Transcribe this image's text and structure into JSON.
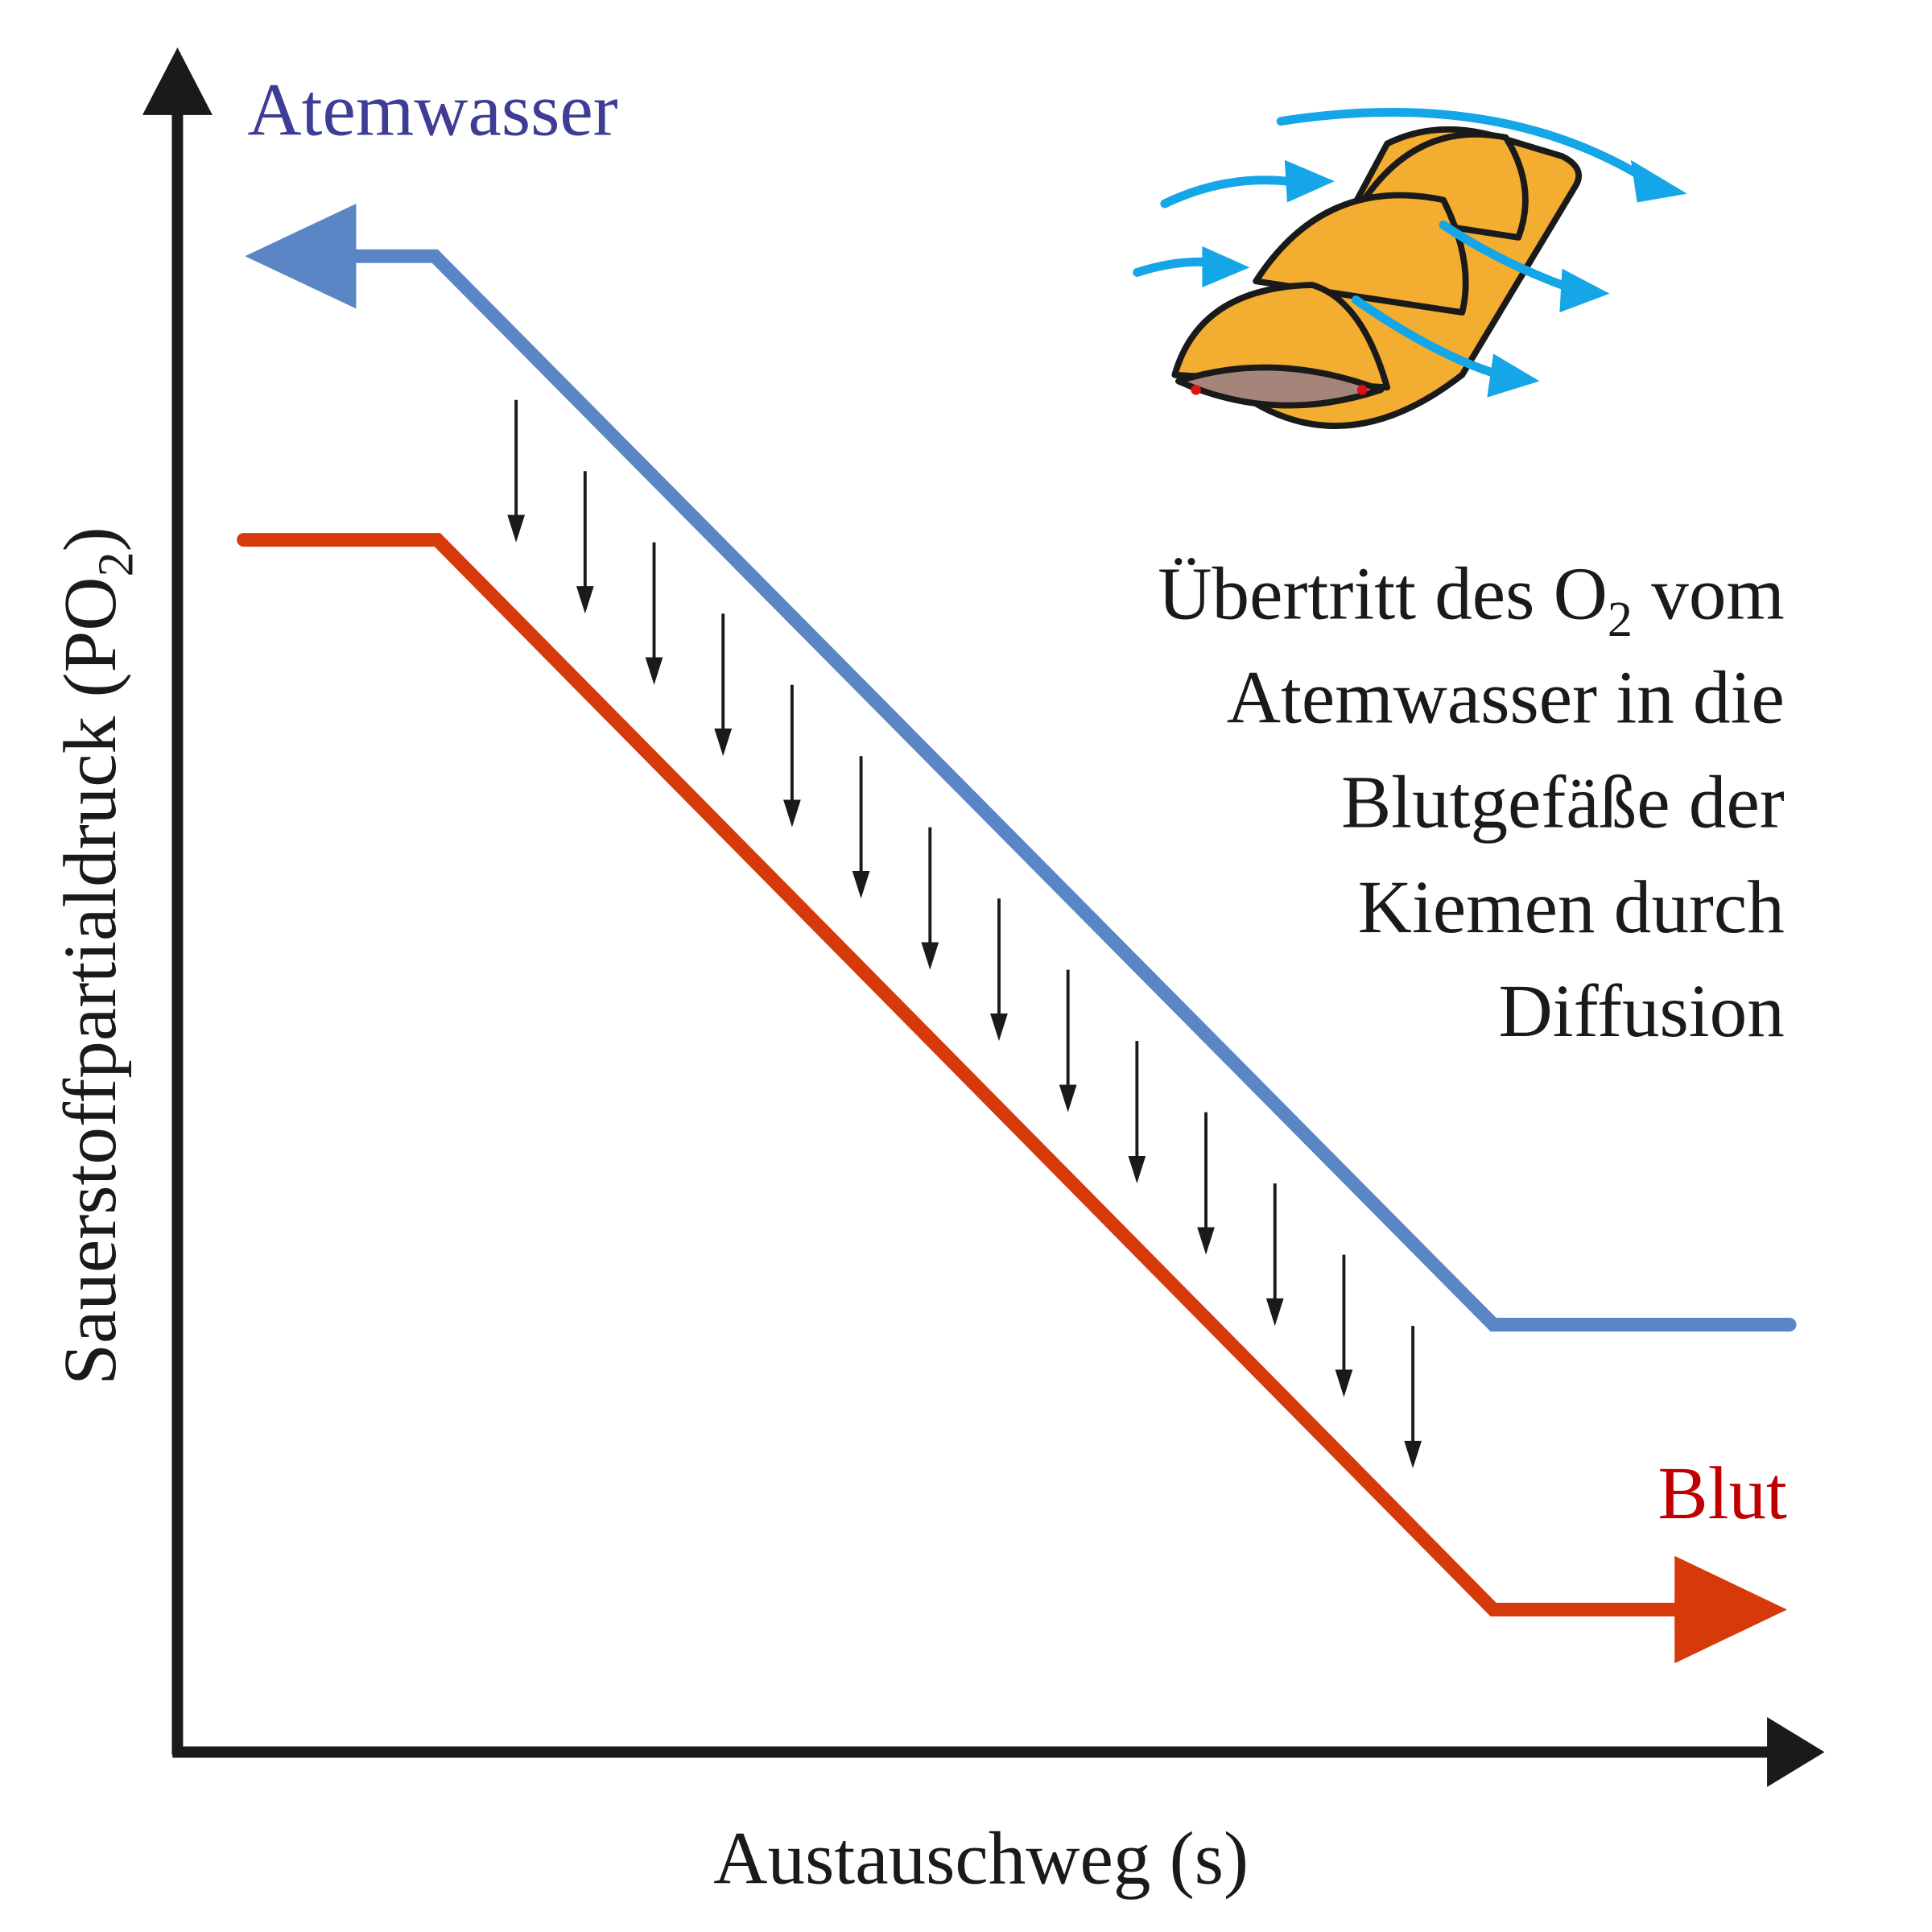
{
  "title": "Atemwasser",
  "blood_label": "Blut",
  "x_axis_label": "Austauschweg (s)",
  "y_axis_label": {
    "before": "Sauerstoffpartialdruck (PO",
    "sub": "2",
    "after": ")"
  },
  "annotation": {
    "first_line": {
      "before": "Übertritt des O",
      "sub": "2",
      "after": " vom"
    },
    "lines": [
      "Atemwasser in die",
      "Blutgefäße der",
      "Kiemen durch",
      "Diffusion"
    ]
  }
}
